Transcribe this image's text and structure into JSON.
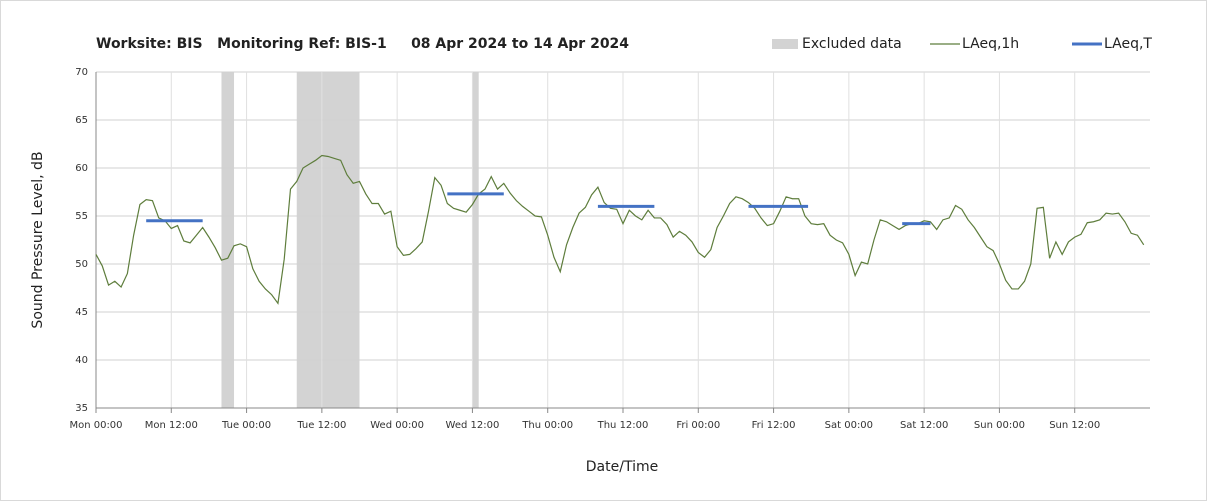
{
  "chart_data": {
    "type": "line",
    "title": "Worksite: BIS   Monitoring Ref: BIS-1     08 Apr 2024 to 14 Apr 2024",
    "xlabel": "Date/Time",
    "ylabel": "Sound Pressure Level, dB",
    "xlim": [
      0,
      168
    ],
    "ylim": [
      35,
      70
    ],
    "yticks": [
      35,
      40,
      45,
      50,
      55,
      60,
      65,
      70
    ],
    "xticks": [
      {
        "value": 0,
        "label": "Mon 00:00"
      },
      {
        "value": 12,
        "label": "Mon 12:00"
      },
      {
        "value": 24,
        "label": "Tue 00:00"
      },
      {
        "value": 36,
        "label": "Tue 12:00"
      },
      {
        "value": 48,
        "label": "Wed 00:00"
      },
      {
        "value": 60,
        "label": "Wed 12:00"
      },
      {
        "value": 72,
        "label": "Thu 00:00"
      },
      {
        "value": 84,
        "label": "Thu 12:00"
      },
      {
        "value": 96,
        "label": "Fri 00:00"
      },
      {
        "value": 108,
        "label": "Fri 12:00"
      },
      {
        "value": 120,
        "label": "Sat 00:00"
      },
      {
        "value": 132,
        "label": "Sat 12:00"
      },
      {
        "value": 144,
        "label": "Sun 00:00"
      },
      {
        "value": 156,
        "label": "Sun 12:00"
      }
    ],
    "grid": true,
    "legend": "top-right",
    "excluded": {
      "name": "Excluded data",
      "color": "#d3d3d3",
      "ranges": [
        [
          20,
          22
        ],
        [
          32,
          42
        ],
        [
          60,
          61
        ]
      ]
    },
    "x": [
      0,
      1,
      2,
      3,
      4,
      5,
      6,
      7,
      8,
      9,
      10,
      11,
      12,
      13,
      14,
      15,
      16,
      17,
      18,
      19,
      20,
      21,
      22,
      23,
      24,
      25,
      26,
      27,
      28,
      29,
      30,
      31,
      32,
      33,
      34,
      35,
      36,
      37,
      38,
      39,
      40,
      41,
      42,
      43,
      44,
      45,
      46,
      47,
      48,
      49,
      50,
      51,
      52,
      53,
      54,
      55,
      56,
      57,
      58,
      59,
      60,
      61,
      62,
      63,
      64,
      65,
      66,
      67,
      68,
      69,
      70,
      71,
      72,
      73,
      74,
      75,
      76,
      77,
      78,
      79,
      80,
      81,
      82,
      83,
      84,
      85,
      86,
      87,
      88,
      89,
      90,
      91,
      92,
      93,
      94,
      95,
      96,
      97,
      98,
      99,
      100,
      101,
      102,
      103,
      104,
      105,
      106,
      107,
      108,
      109,
      110,
      111,
      112,
      113,
      114,
      115,
      116,
      117,
      118,
      119,
      120,
      121,
      122,
      123,
      124,
      125,
      126,
      127,
      128,
      129,
      130,
      131,
      132,
      133,
      134,
      135,
      136,
      137,
      138,
      139,
      140,
      141,
      142,
      143,
      144,
      145,
      146,
      147,
      148,
      149,
      150,
      151,
      152,
      153,
      154,
      155,
      156,
      157,
      158,
      159,
      160,
      161,
      162,
      163,
      164,
      165,
      166,
      167
    ],
    "series": [
      {
        "name": "LAeq,1h",
        "color": "#5e7d3c",
        "values": [
          51,
          49.8,
          47.8,
          48.2,
          47.6,
          49,
          53,
          56.2,
          56.7,
          56.6,
          54.8,
          54.5,
          53.7,
          54,
          52.4,
          52.2,
          53,
          53.8,
          52.8,
          51.7,
          50.4,
          50.6,
          51.9,
          52.1,
          51.8,
          49.5,
          48.2,
          47.4,
          46.8,
          45.9,
          50.5,
          57.8,
          58.6,
          60,
          60.4,
          60.8,
          61.3,
          61.2,
          61,
          60.8,
          59.3,
          58.4,
          58.6,
          57.3,
          56.3,
          56.3,
          55.2,
          55.5,
          51.8,
          50.9,
          51,
          51.6,
          52.3,
          55.5,
          59,
          58.2,
          56.3,
          55.8,
          55.6,
          55.4,
          56.2,
          57.3,
          57.8,
          59.1,
          57.8,
          58.4,
          57.4,
          56.6,
          56,
          55.5,
          55,
          54.9,
          53,
          50.7,
          49.2,
          52,
          53.8,
          55.3,
          55.9,
          57.2,
          58,
          56.4,
          55.8,
          55.7,
          54.2,
          55.6,
          55,
          54.6,
          55.6,
          54.8,
          54.8,
          54.1,
          52.8,
          53.4,
          53,
          52.3,
          51.2,
          50.7,
          51.5,
          53.8,
          55,
          56.3,
          57,
          56.8,
          56.4,
          55.8,
          54.8,
          54,
          54.2,
          55.5,
          57,
          56.8,
          56.8,
          55,
          54.2,
          54.1,
          54.2,
          53,
          52.5,
          52.2,
          51,
          48.8,
          50.2,
          50,
          52.5,
          54.6,
          54.4,
          54,
          53.6,
          54,
          54.2,
          54.2,
          54.5,
          54.4,
          53.6,
          54.6,
          54.8,
          56.1,
          55.7,
          54.6,
          53.8,
          52.8,
          51.8,
          51.4,
          50,
          48.3,
          47.4,
          47.4,
          48.2,
          50,
          55.8,
          55.9,
          50.6,
          52.3,
          51,
          52.3,
          52.8,
          53.1,
          54.3,
          54.4,
          54.6,
          55.3,
          55.2,
          55.3,
          54.4,
          53.2,
          53,
          52
        ]
      }
    ],
    "periods": {
      "name": "LAeq,T",
      "color": "#4472c4",
      "segments": [
        {
          "x": [
            8,
            17
          ],
          "value": 54.5
        },
        {
          "x": [
            56,
            65
          ],
          "value": 57.3
        },
        {
          "x": [
            80,
            89
          ],
          "value": 56
        },
        {
          "x": [
            104,
            113.5
          ],
          "value": 56
        },
        {
          "x": [
            128.5,
            133
          ],
          "value": 54.2
        }
      ]
    }
  }
}
